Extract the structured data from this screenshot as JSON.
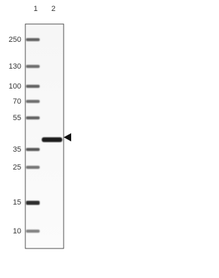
{
  "lanes": [
    "1",
    "2"
  ],
  "markers": [
    250,
    130,
    100,
    70,
    55,
    35,
    25,
    15,
    10
  ]
}
